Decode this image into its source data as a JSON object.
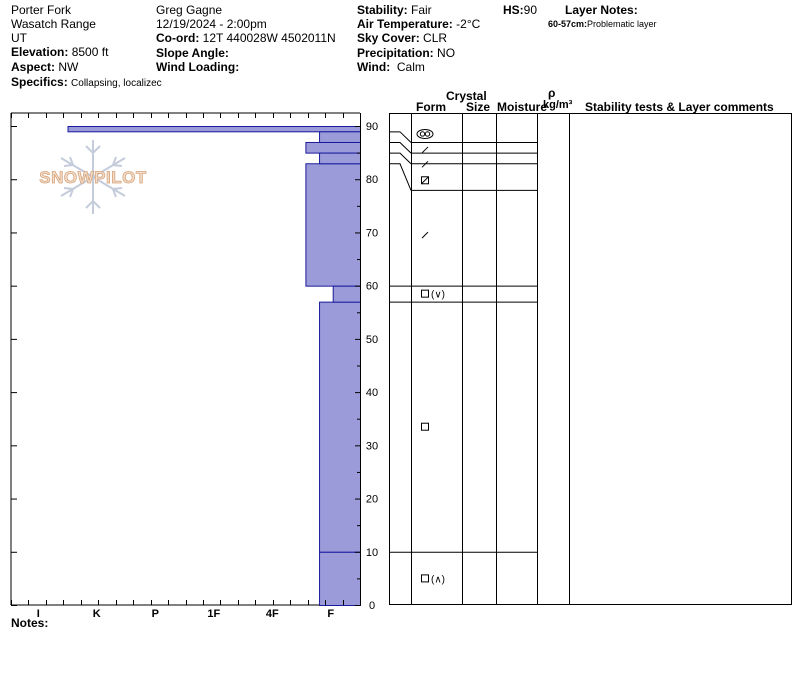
{
  "header": {
    "location": "Porter Fork",
    "range": "Wasatch Range",
    "state": "UT",
    "elevation_label": "Elevation:",
    "elevation": "8500 ft",
    "aspect_label": "Aspect:",
    "aspect": "NW",
    "specifics_label": "Specifics:",
    "specifics": "Collapsing, localizec",
    "observer": "Greg Gagne",
    "datetime": "12/19/2024 - 2:00pm",
    "coord_label": "Co-ord:",
    "coord": "12T 440028W 4502011N",
    "slope_label": "Slope Angle:",
    "slope": "",
    "wind_loading_label": "Wind Loading:",
    "wind_loading": "",
    "stability_label": "Stability:",
    "stability": "Fair",
    "air_temp_label": "Air Temperature:",
    "air_temp": "-2°C",
    "sky_label": "Sky Cover:",
    "sky": "CLR",
    "precip_label": "Precipitation:",
    "precip": "NO",
    "wind_label": "Wind:",
    "wind": "Calm",
    "hs_label": "HS:",
    "hs": "90",
    "layer_notes_title": "Layer Notes:",
    "layer_note_range": "60-57cm:",
    "layer_note_text": "Problematic layer"
  },
  "table_headers": {
    "crystal": "Crystal",
    "form": "Form",
    "size": "Size",
    "moisture": "Moisture",
    "rho": "ρ",
    "density_unit": "kg/m³",
    "stability_comments": "Stability tests & Layer comments"
  },
  "notes_label": "Notes:",
  "logo_text": "SNOWPILOT",
  "colors": {
    "bar_fill": "#9b9bd9",
    "bar_stroke": "#1a1a9c"
  },
  "chart_data": {
    "type": "bar",
    "orientation": "horizontal",
    "title": "",
    "ylabel": "",
    "xlabel": "",
    "ylim": [
      0,
      90
    ],
    "y_ticks": [
      0,
      10,
      20,
      30,
      40,
      50,
      60,
      70,
      80,
      90
    ],
    "hardness_categories": [
      "I",
      "K",
      "P",
      "1F",
      "4F",
      "F"
    ],
    "hardness_scale_ticks": 21,
    "layers": [
      {
        "top": 90,
        "bottom": 89,
        "hardness": 15.0,
        "form": "graupel",
        "form_symbol": "◎"
      },
      {
        "top": 89,
        "bottom": 87,
        "hardness": 2.1,
        "form": "precipitation particles",
        "form_symbol": "/"
      },
      {
        "top": 87,
        "bottom": 85,
        "hardness": 2.8,
        "form": "precipitation particles",
        "form_symbol": "/"
      },
      {
        "top": 85,
        "bottom": 83,
        "hardness": 2.1,
        "form": "precipitation particles",
        "form_symbol": "/"
      },
      {
        "top": 83,
        "bottom": 60,
        "hardness": 2.8,
        "form": "faceted rounded",
        "form_symbol": "⊡"
      },
      {
        "top": 60,
        "bottom": 57,
        "hardness": 1.4,
        "form": "faceted",
        "form_symbol": "□(∨)"
      },
      {
        "top": 57,
        "bottom": 10,
        "hardness": 2.1,
        "form": "faceted",
        "form_symbol": "□"
      },
      {
        "top": 10,
        "bottom": 0,
        "hardness": 2.1,
        "form": "faceted",
        "form_symbol": "□(∧)"
      }
    ],
    "form_markers": [
      {
        "depth": 88.5,
        "symbol": "graupel"
      },
      {
        "depth": 85.5,
        "symbol": "slash"
      },
      {
        "depth": 82.8,
        "symbol": "slash"
      },
      {
        "depth": 79.8,
        "symbol": "boxslash"
      },
      {
        "depth": 69.5,
        "symbol": "slash"
      },
      {
        "depth": 58.5,
        "symbol": "box",
        "suffix": "(∨)"
      },
      {
        "depth": 33.5,
        "symbol": "box"
      },
      {
        "depth": 5.0,
        "symbol": "box",
        "suffix": "(∧)"
      }
    ],
    "connector_boundaries": [
      {
        "left": 89,
        "right": 87
      },
      {
        "left": 87,
        "right": 85
      },
      {
        "left": 85,
        "right": 83
      },
      {
        "left": 83,
        "right": 78
      },
      {
        "left": 60,
        "right": 60
      },
      {
        "left": 57,
        "right": 57
      },
      {
        "left": 10,
        "right": 10
      }
    ]
  }
}
